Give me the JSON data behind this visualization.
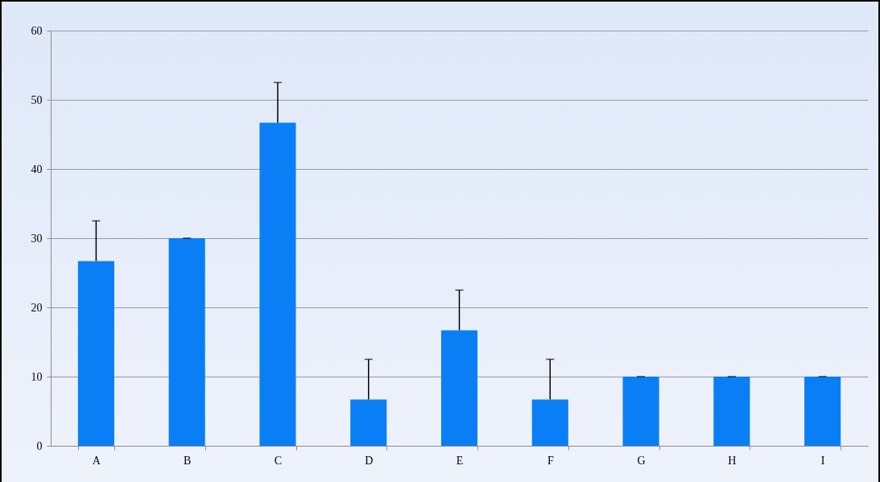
{
  "chart_data": {
    "type": "bar",
    "categories": [
      "A",
      "B",
      "C",
      "D",
      "E",
      "F",
      "G",
      "H",
      "I"
    ],
    "values": [
      26.7,
      30,
      46.7,
      6.7,
      16.7,
      6.7,
      10,
      10,
      10
    ],
    "errors": [
      [
        26.7,
        32.5
      ],
      [
        30,
        30
      ],
      [
        46.7,
        52.5
      ],
      [
        6.7,
        12.5
      ],
      [
        16.7,
        22.5
      ],
      [
        6.7,
        12.5
      ],
      [
        10,
        10
      ],
      [
        10,
        10
      ],
      [
        10,
        10
      ]
    ],
    "color": "#0a7ff5",
    "ylim": [
      0,
      60
    ],
    "yticks": [
      0,
      10,
      20,
      30,
      40,
      50,
      60
    ],
    "grid": "y"
  }
}
